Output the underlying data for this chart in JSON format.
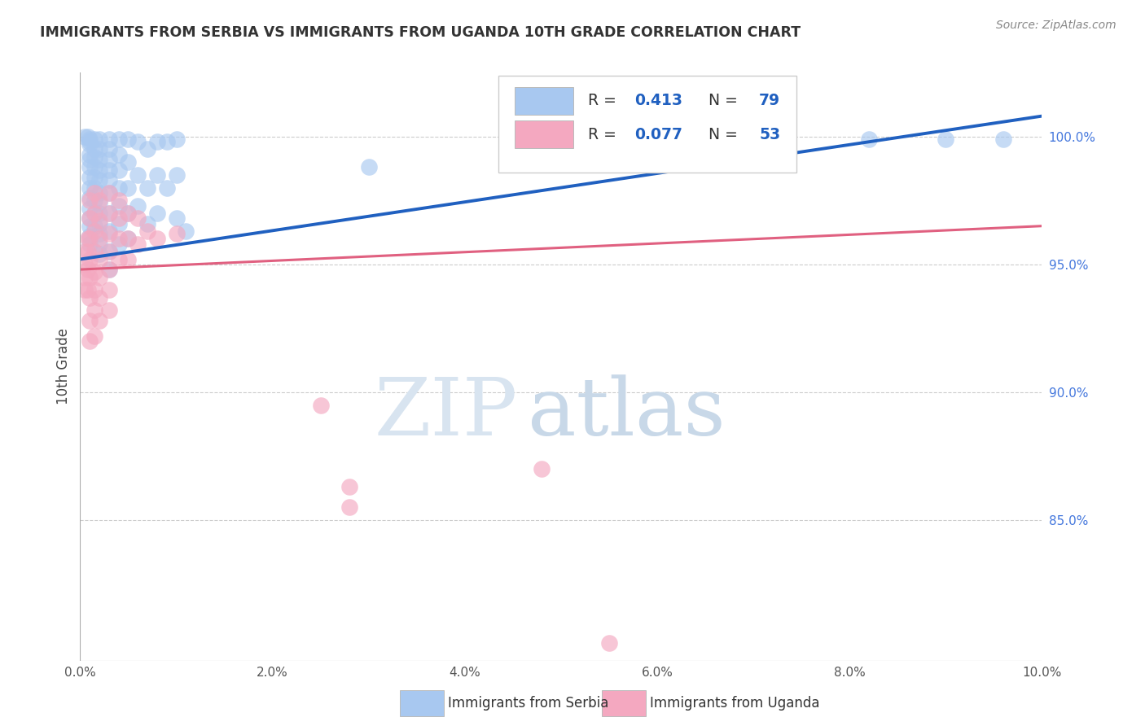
{
  "title": "IMMIGRANTS FROM SERBIA VS IMMIGRANTS FROM UGANDA 10TH GRADE CORRELATION CHART",
  "source": "Source: ZipAtlas.com",
  "ylabel": "10th Grade",
  "ylabel_right_labels": [
    "100.0%",
    "95.0%",
    "90.0%",
    "85.0%"
  ],
  "ylabel_right_positions": [
    1.0,
    0.95,
    0.9,
    0.85
  ],
  "xlim": [
    0.0,
    0.1
  ],
  "ylim": [
    0.795,
    1.025
  ],
  "xtick_positions": [
    0.0,
    0.02,
    0.04,
    0.06,
    0.08,
    0.1
  ],
  "xtick_labels": [
    "0.0%",
    "2.0%",
    "4.0%",
    "6.0%",
    "8.0%",
    "10.0%"
  ],
  "serbia_color": "#A8C8F0",
  "uganda_color": "#F4A8C0",
  "serbia_line_color": "#2060C0",
  "uganda_line_color": "#E06080",
  "serbia_label": "Immigrants from Serbia",
  "uganda_label": "Immigrants from Uganda",
  "watermark_zip": "ZIP",
  "watermark_atlas": "atlas",
  "serbia_trend_x": [
    0.0,
    0.1
  ],
  "serbia_trend_y": [
    0.952,
    1.008
  ],
  "uganda_trend_x": [
    0.0,
    0.1
  ],
  "uganda_trend_y": [
    0.948,
    0.965
  ],
  "serbia_points": [
    [
      0.0005,
      1.0
    ],
    [
      0.0008,
      1.0
    ],
    [
      0.001,
      0.999
    ],
    [
      0.001,
      0.998
    ],
    [
      0.001,
      0.997
    ],
    [
      0.001,
      0.993
    ],
    [
      0.001,
      0.991
    ],
    [
      0.001,
      0.988
    ],
    [
      0.001,
      0.984
    ],
    [
      0.001,
      0.98
    ],
    [
      0.001,
      0.976
    ],
    [
      0.001,
      0.972
    ],
    [
      0.001,
      0.968
    ],
    [
      0.001,
      0.965
    ],
    [
      0.001,
      0.961
    ],
    [
      0.001,
      0.958
    ],
    [
      0.0015,
      0.999
    ],
    [
      0.0015,
      0.995
    ],
    [
      0.0015,
      0.992
    ],
    [
      0.0015,
      0.988
    ],
    [
      0.0015,
      0.984
    ],
    [
      0.0015,
      0.98
    ],
    [
      0.0015,
      0.975
    ],
    [
      0.0015,
      0.97
    ],
    [
      0.0015,
      0.965
    ],
    [
      0.002,
      0.999
    ],
    [
      0.002,
      0.995
    ],
    [
      0.002,
      0.991
    ],
    [
      0.002,
      0.987
    ],
    [
      0.002,
      0.983
    ],
    [
      0.002,
      0.978
    ],
    [
      0.002,
      0.974
    ],
    [
      0.002,
      0.97
    ],
    [
      0.002,
      0.966
    ],
    [
      0.002,
      0.962
    ],
    [
      0.002,
      0.958
    ],
    [
      0.002,
      0.954
    ],
    [
      0.003,
      0.999
    ],
    [
      0.003,
      0.995
    ],
    [
      0.003,
      0.991
    ],
    [
      0.003,
      0.987
    ],
    [
      0.003,
      0.983
    ],
    [
      0.003,
      0.978
    ],
    [
      0.003,
      0.97
    ],
    [
      0.003,
      0.963
    ],
    [
      0.003,
      0.955
    ],
    [
      0.003,
      0.948
    ],
    [
      0.004,
      0.999
    ],
    [
      0.004,
      0.993
    ],
    [
      0.004,
      0.987
    ],
    [
      0.004,
      0.98
    ],
    [
      0.004,
      0.973
    ],
    [
      0.004,
      0.966
    ],
    [
      0.004,
      0.958
    ],
    [
      0.005,
      0.999
    ],
    [
      0.005,
      0.99
    ],
    [
      0.005,
      0.98
    ],
    [
      0.005,
      0.97
    ],
    [
      0.005,
      0.96
    ],
    [
      0.006,
      0.998
    ],
    [
      0.006,
      0.985
    ],
    [
      0.006,
      0.973
    ],
    [
      0.007,
      0.995
    ],
    [
      0.007,
      0.98
    ],
    [
      0.007,
      0.966
    ],
    [
      0.008,
      0.998
    ],
    [
      0.008,
      0.985
    ],
    [
      0.008,
      0.97
    ],
    [
      0.009,
      0.998
    ],
    [
      0.009,
      0.98
    ],
    [
      0.01,
      0.999
    ],
    [
      0.01,
      0.985
    ],
    [
      0.01,
      0.968
    ],
    [
      0.011,
      0.963
    ],
    [
      0.03,
      0.988
    ],
    [
      0.068,
      1.0
    ],
    [
      0.082,
      0.999
    ],
    [
      0.09,
      0.999
    ],
    [
      0.096,
      0.999
    ]
  ],
  "uganda_points": [
    [
      0.0005,
      0.955
    ],
    [
      0.0005,
      0.95
    ],
    [
      0.0005,
      0.945
    ],
    [
      0.0005,
      0.94
    ],
    [
      0.0008,
      0.96
    ],
    [
      0.0008,
      0.955
    ],
    [
      0.0008,
      0.948
    ],
    [
      0.0008,
      0.94
    ],
    [
      0.001,
      0.975
    ],
    [
      0.001,
      0.968
    ],
    [
      0.001,
      0.96
    ],
    [
      0.001,
      0.952
    ],
    [
      0.001,
      0.945
    ],
    [
      0.001,
      0.937
    ],
    [
      0.001,
      0.928
    ],
    [
      0.001,
      0.92
    ],
    [
      0.0015,
      0.978
    ],
    [
      0.0015,
      0.97
    ],
    [
      0.0015,
      0.963
    ],
    [
      0.0015,
      0.955
    ],
    [
      0.0015,
      0.947
    ],
    [
      0.0015,
      0.94
    ],
    [
      0.0015,
      0.932
    ],
    [
      0.0015,
      0.922
    ],
    [
      0.002,
      0.975
    ],
    [
      0.002,
      0.967
    ],
    [
      0.002,
      0.96
    ],
    [
      0.002,
      0.952
    ],
    [
      0.002,
      0.945
    ],
    [
      0.002,
      0.937
    ],
    [
      0.002,
      0.928
    ],
    [
      0.003,
      0.978
    ],
    [
      0.003,
      0.97
    ],
    [
      0.003,
      0.962
    ],
    [
      0.003,
      0.955
    ],
    [
      0.003,
      0.948
    ],
    [
      0.003,
      0.94
    ],
    [
      0.003,
      0.932
    ],
    [
      0.004,
      0.975
    ],
    [
      0.004,
      0.968
    ],
    [
      0.004,
      0.96
    ],
    [
      0.004,
      0.952
    ],
    [
      0.005,
      0.97
    ],
    [
      0.005,
      0.96
    ],
    [
      0.005,
      0.952
    ],
    [
      0.006,
      0.968
    ],
    [
      0.006,
      0.958
    ],
    [
      0.007,
      0.963
    ],
    [
      0.008,
      0.96
    ],
    [
      0.01,
      0.962
    ],
    [
      0.025,
      0.895
    ],
    [
      0.028,
      0.863
    ],
    [
      0.028,
      0.855
    ],
    [
      0.048,
      0.87
    ],
    [
      0.055,
      0.802
    ]
  ]
}
